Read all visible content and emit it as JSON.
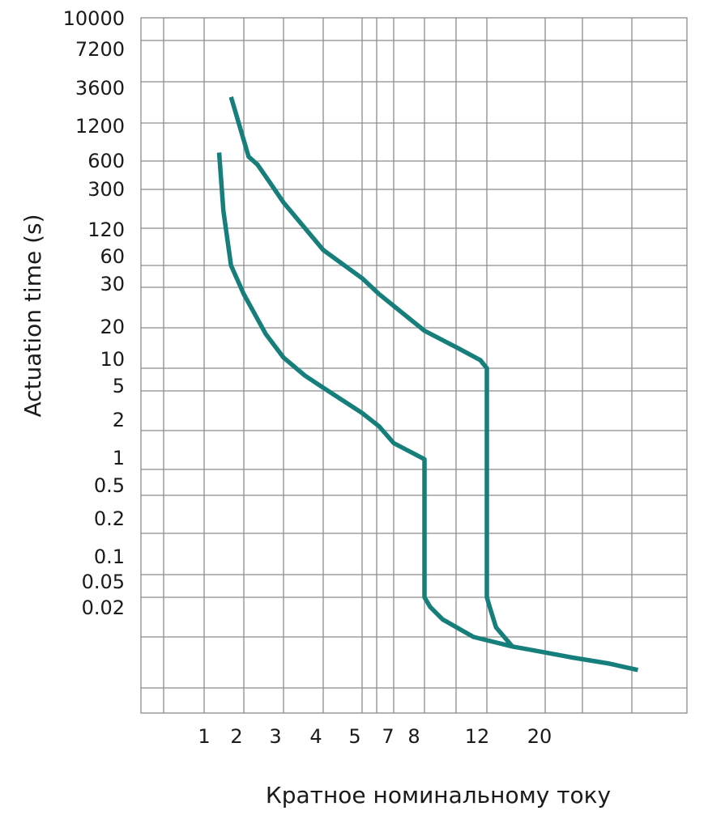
{
  "chart_data": {
    "type": "line",
    "ylabel": "Actuation time (s)",
    "xlabel": "Кратное номинальному току",
    "y_tick_labels": [
      "10000",
      "7200",
      "3600",
      "1200",
      "600",
      "300",
      "120",
      "60",
      "30",
      "20",
      "10",
      "5",
      "2",
      "1",
      "0.5",
      "0.2",
      "0.1",
      "0.05",
      "0.02"
    ],
    "x_tick_labels": [
      "1",
      "2",
      "3",
      "4",
      "5",
      "7",
      "8",
      "12",
      "20"
    ],
    "grid": true,
    "series": [
      {
        "curve": "lower",
        "color": "#167f7c",
        "points": [
          {
            "x": 1.3,
            "y": 700
          },
          {
            "x": 1.4,
            "y": 180
          },
          {
            "x": 1.6,
            "y": 60
          },
          {
            "x": 2.0,
            "y": 28
          },
          {
            "x": 2.5,
            "y": 18
          },
          {
            "x": 3.0,
            "y": 12
          },
          {
            "x": 3.5,
            "y": 8
          },
          {
            "x": 4.0,
            "y": 5.5
          },
          {
            "x": 5.0,
            "y": 3
          },
          {
            "x": 6.0,
            "y": 2.2
          },
          {
            "x": 7.0,
            "y": 1.6
          },
          {
            "x": 8.0,
            "y": 1.2
          },
          {
            "x": 8.0,
            "y": 0.05
          },
          {
            "x": 8.3,
            "y": 0.04
          },
          {
            "x": 9.0,
            "y": 0.03
          },
          {
            "x": 11.0,
            "y": 0.02
          },
          {
            "x": 15.0,
            "y": 0.013
          },
          {
            "x": 18.0,
            "y": 0.011
          },
          {
            "x": 25.0,
            "y": 0.008
          },
          {
            "x": 35.0,
            "y": 0.006
          },
          {
            "x": 45.0,
            "y": 0.0045
          }
        ]
      },
      {
        "curve": "upper",
        "color": "#167f7c",
        "points": [
          {
            "x": 1.6,
            "y": 2400
          },
          {
            "x": 1.8,
            "y": 1300
          },
          {
            "x": 2.1,
            "y": 650
          },
          {
            "x": 2.3,
            "y": 550
          },
          {
            "x": 2.6,
            "y": 360
          },
          {
            "x": 3.0,
            "y": 220
          },
          {
            "x": 4.0,
            "y": 80
          },
          {
            "x": 5.0,
            "y": 40
          },
          {
            "x": 6.0,
            "y": 28
          },
          {
            "x": 8.0,
            "y": 19
          },
          {
            "x": 10.0,
            "y": 14
          },
          {
            "x": 11.5,
            "y": 11.5
          },
          {
            "x": 12.0,
            "y": 10
          },
          {
            "x": 12.0,
            "y": 0.05
          },
          {
            "x": 12.3,
            "y": 0.04
          },
          {
            "x": 13.0,
            "y": 0.025
          },
          {
            "x": 15.0,
            "y": 0.013
          }
        ]
      }
    ]
  }
}
